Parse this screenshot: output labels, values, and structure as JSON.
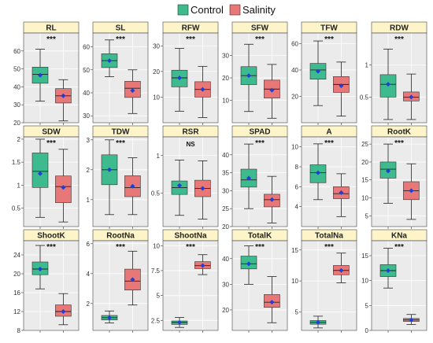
{
  "legend": [
    {
      "name": "Control",
      "color": "#3dbb8f"
    },
    {
      "name": "Salinity",
      "color": "#e87777"
    }
  ],
  "colors": {
    "control": "#3dbb8f",
    "salinity": "#e87777",
    "mean": "#1f3fd6",
    "panel_bg": "#ebebeb",
    "grid": "#ffffff",
    "strip": "#fdf5c9"
  },
  "chart_data": [
    {
      "type": "box",
      "title": "RL",
      "ylim": [
        20,
        70
      ],
      "yticks": [
        20,
        30,
        40,
        50,
        60
      ],
      "sig": "***",
      "series": [
        {
          "name": "Control",
          "box": {
            "min": 32,
            "q1": 42,
            "median": 47,
            "q3": 51,
            "max": 61,
            "mean": 46.5
          }
        },
        {
          "name": "Salinity",
          "box": {
            "min": 21,
            "q1": 31,
            "median": 35,
            "q3": 39,
            "max": 44,
            "mean": 35
          }
        }
      ]
    },
    {
      "type": "box",
      "title": "SL",
      "ylim": [
        27,
        66
      ],
      "yticks": [
        30,
        40,
        50,
        60
      ],
      "sig": "***",
      "series": [
        {
          "name": "Control",
          "box": {
            "min": 47,
            "q1": 51,
            "median": 54,
            "q3": 57,
            "max": 63,
            "mean": 54
          }
        },
        {
          "name": "Salinity",
          "box": {
            "min": 31,
            "q1": 38,
            "median": 42,
            "q3": 45,
            "max": 50,
            "mean": 41
          }
        }
      ]
    },
    {
      "type": "box",
      "title": "RFW",
      "ylim": [
        0,
        35
      ],
      "yticks": [
        10,
        20,
        30
      ],
      "sig": "***",
      "series": [
        {
          "name": "Control",
          "box": {
            "min": 4.5,
            "q1": 14,
            "median": 17.5,
            "q3": 20.5,
            "max": 29,
            "mean": 17.5
          }
        },
        {
          "name": "Salinity",
          "box": {
            "min": 2,
            "q1": 10,
            "median": 13,
            "q3": 16,
            "max": 22,
            "mean": 13
          }
        }
      ]
    },
    {
      "type": "box",
      "title": "SFW",
      "ylim": [
        0,
        40
      ],
      "yticks": [
        10,
        20,
        30
      ],
      "sig": "***",
      "series": [
        {
          "name": "Control",
          "box": {
            "min": 5,
            "q1": 17,
            "median": 21,
            "q3": 25,
            "max": 35,
            "mean": 21
          }
        },
        {
          "name": "Salinity",
          "box": {
            "min": 2,
            "q1": 11,
            "median": 15,
            "q3": 19,
            "max": 26,
            "mean": 14.5
          }
        }
      ]
    },
    {
      "type": "box",
      "title": "TFW",
      "ylim": [
        0,
        68
      ],
      "yticks": [
        20,
        40,
        60
      ],
      "sig": "***",
      "series": [
        {
          "name": "Control",
          "box": {
            "min": 13,
            "q1": 33,
            "median": 40,
            "q3": 45,
            "max": 62,
            "mean": 39
          }
        },
        {
          "name": "Salinity",
          "box": {
            "min": 5,
            "q1": 23,
            "median": 29,
            "q3": 35,
            "max": 46,
            "mean": 28
          }
        }
      ]
    },
    {
      "type": "box",
      "title": "RDW",
      "ylim": [
        0.1,
        1.5
      ],
      "yticks": [
        0.5,
        1.0
      ],
      "sig": "***",
      "series": [
        {
          "name": "Control",
          "box": {
            "min": 0.15,
            "q1": 0.5,
            "median": 0.7,
            "q3": 0.85,
            "max": 1.25,
            "mean": 0.7
          }
        },
        {
          "name": "Salinity",
          "box": {
            "min": 0.15,
            "q1": 0.44,
            "median": 0.5,
            "q3": 0.58,
            "max": 0.86,
            "mean": 0.5
          }
        }
      ]
    },
    {
      "type": "box",
      "title": "SDW",
      "ylim": [
        0.1,
        2.05
      ],
      "yticks": [
        0.5,
        1.0,
        1.5,
        2.0
      ],
      "sig": "***",
      "series": [
        {
          "name": "Control",
          "box": {
            "min": 0.3,
            "q1": 0.95,
            "median": 1.3,
            "q3": 1.7,
            "max": 2.0,
            "mean": 1.25
          }
        },
        {
          "name": "Salinity",
          "box": {
            "min": 0.2,
            "q1": 0.62,
            "median": 0.97,
            "q3": 1.2,
            "max": 1.78,
            "mean": 0.95
          }
        }
      ]
    },
    {
      "type": "box",
      "title": "TDW",
      "ylim": [
        0.1,
        3.1
      ],
      "yticks": [
        1,
        2,
        3
      ],
      "sig": "***",
      "series": [
        {
          "name": "Control",
          "box": {
            "min": 0.5,
            "q1": 1.5,
            "median": 2.0,
            "q3": 2.5,
            "max": 3.0,
            "mean": 2.0
          }
        },
        {
          "name": "Salinity",
          "box": {
            "min": 0.5,
            "q1": 1.1,
            "median": 1.4,
            "q3": 1.8,
            "max": 2.4,
            "mean": 1.45
          }
        }
      ]
    },
    {
      "type": "box",
      "title": "RSR",
      "ylim": [
        0.05,
        1.25
      ],
      "yticks": [
        0.5,
        1.0
      ],
      "sig": "NS",
      "series": [
        {
          "name": "Control",
          "box": {
            "min": 0.2,
            "q1": 0.48,
            "median": 0.57,
            "q3": 0.66,
            "max": 0.94,
            "mean": 0.6
          }
        },
        {
          "name": "Salinity",
          "box": {
            "min": 0.15,
            "q1": 0.45,
            "median": 0.56,
            "q3": 0.67,
            "max": 0.93,
            "mean": 0.56
          }
        }
      ]
    },
    {
      "type": "box",
      "title": "SPAD",
      "ylim": [
        20,
        45
      ],
      "yticks": [
        20,
        25,
        30,
        35,
        40
      ],
      "sig": "***",
      "series": [
        {
          "name": "Control",
          "box": {
            "min": 25,
            "q1": 31,
            "median": 33,
            "q3": 36,
            "max": 43,
            "mean": 33.5
          }
        },
        {
          "name": "Salinity",
          "box": {
            "min": 21,
            "q1": 25.5,
            "median": 27.5,
            "q3": 29,
            "max": 34,
            "mean": 27.5
          }
        }
      ]
    },
    {
      "type": "box",
      "title": "A",
      "ylim": [
        2,
        11
      ],
      "yticks": [
        4,
        6,
        8,
        10
      ],
      "sig": "***",
      "series": [
        {
          "name": "Control",
          "box": {
            "min": 4.7,
            "q1": 6.4,
            "median": 7.4,
            "q3": 8.2,
            "max": 10.3,
            "mean": 7.4
          }
        },
        {
          "name": "Salinity",
          "box": {
            "min": 3,
            "q1": 4.8,
            "median": 5.3,
            "q3": 6.0,
            "max": 7.3,
            "mean": 5.4
          }
        }
      ]
    },
    {
      "type": "box",
      "title": "RootK",
      "ylim": [
        2,
        27
      ],
      "yticks": [
        5,
        10,
        15,
        20,
        25
      ],
      "sig": "***",
      "series": [
        {
          "name": "Control",
          "box": {
            "min": 8.5,
            "q1": 15.5,
            "median": 18,
            "q3": 20,
            "max": 25,
            "mean": 17.5
          }
        },
        {
          "name": "Salinity",
          "box": {
            "min": 4,
            "q1": 9.5,
            "median": 12,
            "q3": 14.5,
            "max": 19.5,
            "mean": 12
          }
        }
      ]
    },
    {
      "type": "box",
      "title": "ShootK",
      "ylim": [
        8,
        27
      ],
      "yticks": [
        8,
        12,
        16,
        20,
        24
      ],
      "sig": "***",
      "series": [
        {
          "name": "Control",
          "box": {
            "min": 16.8,
            "q1": 19.8,
            "median": 21,
            "q3": 22.5,
            "max": 26,
            "mean": 21
          }
        },
        {
          "name": "Salinity",
          "box": {
            "min": 9.2,
            "q1": 11,
            "median": 12,
            "q3": 13.4,
            "max": 15.8,
            "mean": 12
          }
        }
      ]
    },
    {
      "type": "box",
      "title": "RootNa",
      "ylim": [
        0.2,
        6.2
      ],
      "yticks": [
        2,
        4,
        6
      ],
      "sig": "***",
      "series": [
        {
          "name": "Control",
          "box": {
            "min": 0.7,
            "q1": 0.9,
            "median": 1.05,
            "q3": 1.2,
            "max": 1.5,
            "mean": 1.05
          }
        },
        {
          "name": "Salinity",
          "box": {
            "min": 1.9,
            "q1": 2.9,
            "median": 3.5,
            "q3": 4.3,
            "max": 5.5,
            "mean": 3.6
          }
        }
      ]
    },
    {
      "type": "box",
      "title": "ShootNa",
      "ylim": [
        1.5,
        10.5
      ],
      "yticks": [
        2.5,
        5.0,
        7.5,
        10.0
      ],
      "sig": "***",
      "series": [
        {
          "name": "Control",
          "box": {
            "min": 1.8,
            "q1": 2.1,
            "median": 2.3,
            "q3": 2.45,
            "max": 2.8,
            "mean": 2.3
          }
        },
        {
          "name": "Salinity",
          "box": {
            "min": 7.1,
            "q1": 7.7,
            "median": 8.0,
            "q3": 8.4,
            "max": 9.1,
            "mean": 8.0
          }
        }
      ]
    },
    {
      "type": "box",
      "title": "TotalK",
      "ylim": [
        12,
        47
      ],
      "yticks": [
        20,
        30,
        40
      ],
      "sig": "***",
      "series": [
        {
          "name": "Control",
          "box": {
            "min": 30,
            "q1": 36,
            "median": 38,
            "q3": 41,
            "max": 45,
            "mean": 38
          }
        },
        {
          "name": "Salinity",
          "box": {
            "min": 15,
            "q1": 21,
            "median": 23,
            "q3": 26,
            "max": 33,
            "mean": 23
          }
        }
      ]
    },
    {
      "type": "box",
      "title": "TotalNa",
      "ylim": [
        2,
        16.5
      ],
      "yticks": [
        5,
        10,
        15
      ],
      "sig": "***",
      "series": [
        {
          "name": "Control",
          "box": {
            "min": 2.4,
            "q1": 3.0,
            "median": 3.3,
            "q3": 3.6,
            "max": 4.3,
            "mean": 3.3
          }
        },
        {
          "name": "Salinity",
          "box": {
            "min": 9.7,
            "q1": 11,
            "median": 11.7,
            "q3": 12.5,
            "max": 14.5,
            "mean": 11.7
          }
        }
      ]
    },
    {
      "type": "box",
      "title": "KNa",
      "ylim": [
        0,
        18
      ],
      "yticks": [
        0,
        5,
        10,
        15
      ],
      "sig": "***",
      "series": [
        {
          "name": "Control",
          "box": {
            "min": 8.5,
            "q1": 10.8,
            "median": 12,
            "q3": 13.2,
            "max": 16.5,
            "mean": 12
          }
        },
        {
          "name": "Salinity",
          "box": {
            "min": 1.2,
            "q1": 1.8,
            "median": 2.1,
            "q3": 2.4,
            "max": 3.2,
            "mean": 2.1
          }
        }
      ]
    }
  ]
}
